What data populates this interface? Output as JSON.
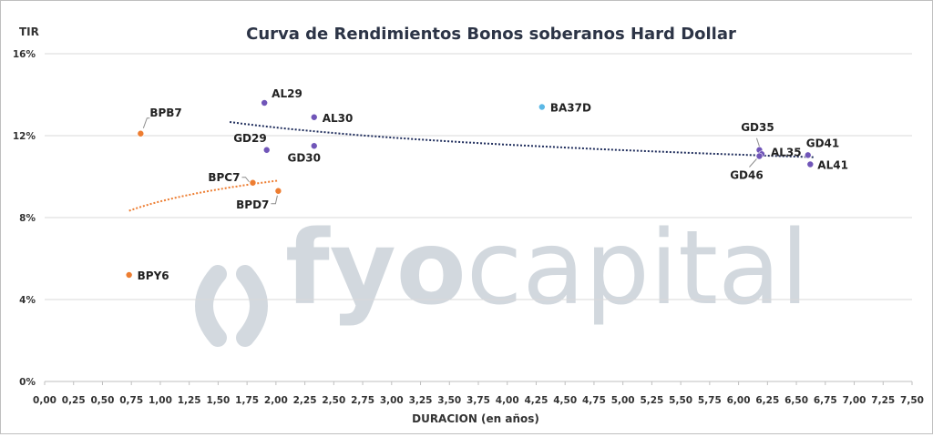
{
  "chart_data": {
    "type": "scatter",
    "title": "Curva de Rendimientos Bonos soberanos Hard Dollar",
    "xlabel": "DURACION (en años)",
    "ylabel": "TIR",
    "xlim": [
      0,
      7.5
    ],
    "ylim": [
      0,
      16
    ],
    "xticks": [
      "0,00",
      "0,25",
      "0,50",
      "0,75",
      "1,00",
      "1,25",
      "1,50",
      "1,75",
      "2,00",
      "2,25",
      "2,50",
      "2,75",
      "3,00",
      "3,25",
      "3,50",
      "3,75",
      "4,00",
      "4,25",
      "4,50",
      "4,75",
      "5,00",
      "5,25",
      "5,50",
      "5,75",
      "6,00",
      "6,25",
      "6,50",
      "6,75",
      "7,00",
      "7,25",
      "7,50"
    ],
    "yticks": [
      "0%",
      "4%",
      "8%",
      "12%",
      "16%"
    ],
    "grid": true,
    "watermark": {
      "word_bold": "fyo",
      "word_light": "capital"
    },
    "series": [
      {
        "color": "#7055b8",
        "points": [
          {
            "label": "AL29",
            "x": 1.9,
            "y": 13.6
          },
          {
            "label": "AL30",
            "x": 2.33,
            "y": 12.9
          },
          {
            "label": "GD29",
            "x": 1.92,
            "y": 11.3
          },
          {
            "label": "GD30",
            "x": 2.33,
            "y": 11.5
          },
          {
            "label": "GD35",
            "x": 6.18,
            "y": 11.3
          },
          {
            "label": "AL35",
            "x": 6.2,
            "y": 11.1
          },
          {
            "label": "GD46",
            "x": 6.18,
            "y": 11.0
          },
          {
            "label": "GD41",
            "x": 6.6,
            "y": 11.05
          },
          {
            "label": "AL41",
            "x": 6.62,
            "y": 10.6
          }
        ],
        "trendline": {
          "type": "logarithmic",
          "x_range": [
            1.6,
            6.65
          ],
          "color": "#1f2d5c"
        }
      },
      {
        "color": "#ed7d31",
        "points": [
          {
            "label": "BPB7",
            "x": 0.83,
            "y": 12.1
          },
          {
            "label": "BPC7",
            "x": 1.8,
            "y": 9.7
          },
          {
            "label": "BPD7",
            "x": 2.02,
            "y": 9.3
          },
          {
            "label": "BPY6",
            "x": 0.73,
            "y": 5.2
          }
        ],
        "trendline": {
          "type": "logarithmic",
          "x_range": [
            0.73,
            2.02
          ],
          "color": "#ed7d31"
        }
      },
      {
        "color": "#5bb8e6",
        "points": [
          {
            "label": "BA37D",
            "x": 4.3,
            "y": 13.4
          }
        ]
      }
    ]
  }
}
